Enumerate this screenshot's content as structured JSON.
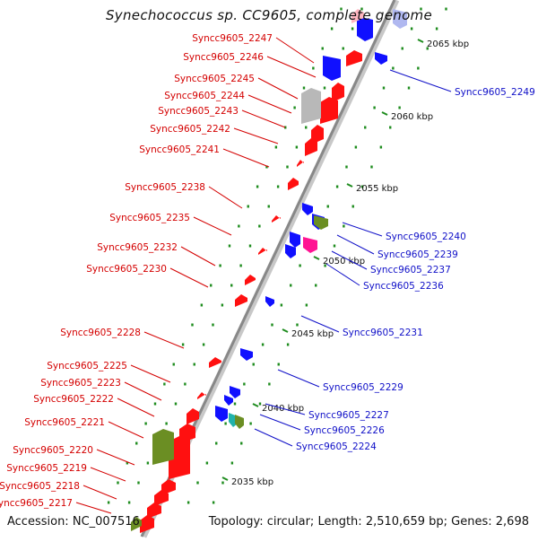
{
  "title": "Synechococcus sp. CC9605, complete genome",
  "footer": {
    "accession_label": "Accession:",
    "accession": "NC_007516",
    "topology_label": "Topology:",
    "topology": "circular",
    "length_label": "Length:",
    "length": "2,510,659 bp",
    "genes_label": "Genes:",
    "genes": "2,698"
  },
  "colors": {
    "left_label": "#d40000",
    "right_label": "#1010c8",
    "forward_gene": "#ff1010",
    "reverse_gene": "#1010ff",
    "olive_gene": "#6b8e23",
    "magenta_gene": "#ff1493",
    "cyan_gene": "#20b2aa",
    "grey_gene": "#b8b8b8",
    "pink_gene": "#ffb6c1",
    "lavender_gene": "#b0b8f0",
    "tick_mark": "#1e8c1e",
    "axis": "#888888"
  },
  "scale_ticks": [
    {
      "label": "2065 kbp",
      "kbp": 2065
    },
    {
      "label": "2060 kbp",
      "kbp": 2060
    },
    {
      "label": "2055 kbp",
      "kbp": 2055
    },
    {
      "label": "2050 kbp",
      "kbp": 2050
    },
    {
      "label": "2045 kbp",
      "kbp": 2045
    },
    {
      "label": "2040 kbp",
      "kbp": 2040
    },
    {
      "label": "2035 kbp",
      "kbp": 2035
    }
  ],
  "left_labels": [
    "Syncc9605_2247",
    "Syncc9605_2246",
    "Syncc9605_2245",
    "Syncc9605_2244",
    "Syncc9605_2243",
    "Syncc9605_2242",
    "Syncc9605_2241",
    "Syncc9605_2238",
    "Syncc9605_2235",
    "Syncc9605_2232",
    "Syncc9605_2230",
    "Syncc9605_2228",
    "Syncc9605_2225",
    "Syncc9605_2223",
    "Syncc9605_2222",
    "Syncc9605_2221",
    "Syncc9605_2220",
    "Syncc9605_2219",
    "Syncc9605_2218",
    "Syncc9605_2217"
  ],
  "right_labels": [
    "Syncc9605_2249",
    "Syncc9605_2240",
    "Syncc9605_2239",
    "Syncc9605_2237",
    "Syncc9605_2236",
    "Syncc9605_2231",
    "Syncc9605_2229",
    "Syncc9605_2227",
    "Syncc9605_2226",
    "Syncc9605_2224"
  ]
}
